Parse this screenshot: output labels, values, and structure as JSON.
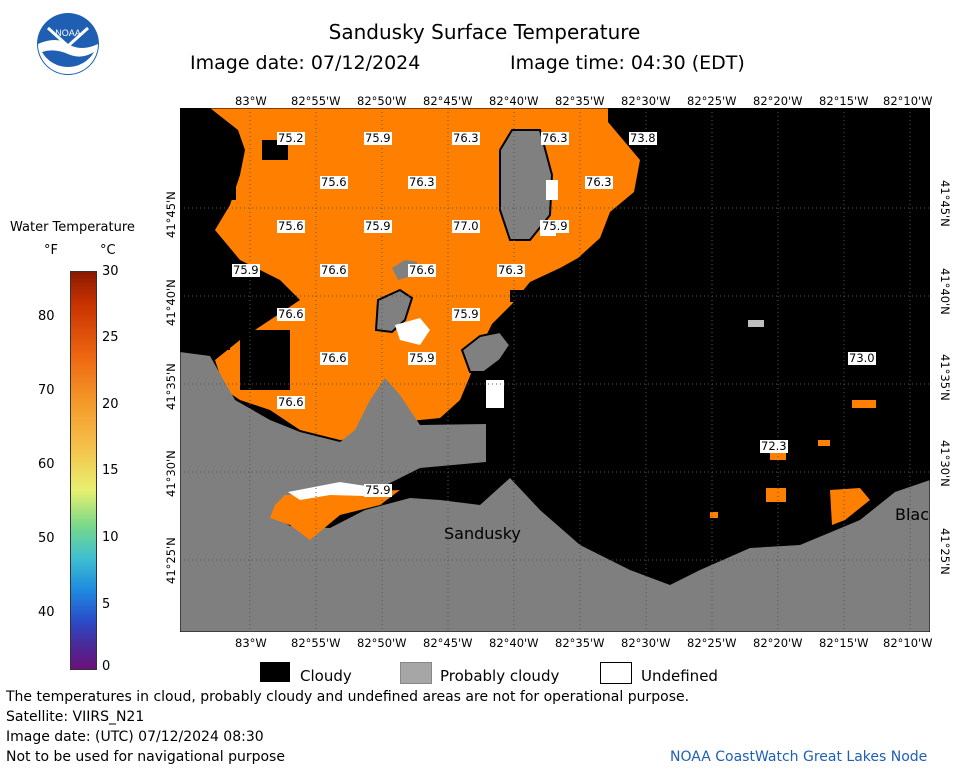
{
  "header": {
    "title": "Sandusky Surface Temperature",
    "image_date": "Image date: 07/12/2024",
    "image_time": "Image time: 04:30 (EDT)"
  },
  "logo": {
    "text": "NOAA"
  },
  "map": {
    "lon_ticks": [
      "83°W",
      "82°55'W",
      "82°50'W",
      "82°45'W",
      "82°40'W",
      "82°35'W",
      "82°30'W",
      "82°25'W",
      "82°20'W",
      "82°15'W",
      "82°10'W"
    ],
    "lat_ticks": [
      "41°45'N",
      "41°40'N",
      "41°35'N",
      "41°30'N",
      "41°25'N"
    ],
    "place_labels": [
      "Sandusky",
      "Blac"
    ],
    "sst_labels": [
      "75.2",
      "75.9",
      "76.3",
      "76.3",
      "73.8",
      "75.6",
      "76.3",
      "76.3",
      "75.6",
      "75.9",
      "77.0",
      "75.9",
      "75.9",
      "76.6",
      "76.6",
      "76.3",
      "76.6",
      "75.9",
      "76.6",
      "75.9",
      "73.0",
      "76.6",
      "72.3",
      "75.9"
    ]
  },
  "scale": {
    "title": "Water Temperature",
    "unit_f": "°F",
    "unit_c": "°C",
    "f_ticks": [
      "80",
      "70",
      "60",
      "50",
      "40"
    ],
    "c_ticks": [
      "30",
      "25",
      "20",
      "15",
      "10",
      "5",
      "0"
    ],
    "colors": [
      "#ffffff",
      "#ff8000",
      "#000000",
      "#808080",
      "#bfbfbf"
    ]
  },
  "legend": {
    "cloudy": "Cloudy",
    "probably_cloudy": "Probably cloudy",
    "undefined": "Undefined"
  },
  "footer": {
    "disclaimer": "The temperatures in cloud, probably cloudy and undefined areas are not for operational purpose.",
    "satellite": "Satellite: VIIRS_N21",
    "utc_date": "Image date: (UTC) 07/12/2024  08:30",
    "nav": "Not to be used for navigational purpose",
    "credit": "NOAA CoastWatch Great Lakes Node"
  }
}
